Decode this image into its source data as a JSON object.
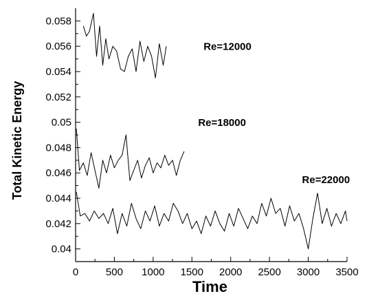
{
  "chart_data": {
    "type": "line",
    "title": "",
    "xlabel": "Time",
    "ylabel": "Total Kinetic Energy",
    "xlim": [
      0,
      3500
    ],
    "ylim": [
      0.039,
      0.059
    ],
    "xticks": [
      0,
      500,
      1000,
      1500,
      2000,
      2500,
      3000,
      3500
    ],
    "xtick_labels": [
      "0",
      "500",
      "1000",
      "1500",
      "2000",
      "2500",
      "3000",
      "3500"
    ],
    "yticks": [
      0.04,
      0.042,
      0.044,
      0.046,
      0.048,
      0.05,
      0.052,
      0.054,
      0.056,
      0.058
    ],
    "ytick_labels": [
      "0.04",
      "0.042",
      "0.044",
      "0.046",
      "0.048",
      "0.05",
      "0.052",
      "0.054",
      "0.056",
      "0.058"
    ],
    "grid": false,
    "line_color": "#000000",
    "series": [
      {
        "name": "Re=12000",
        "x": [
          100,
          140,
          180,
          230,
          270,
          310,
          350,
          390,
          430,
          480,
          530,
          580,
          630,
          680,
          730,
          780,
          830,
          880,
          930,
          980,
          1030,
          1080,
          1130,
          1170
        ],
        "y": [
          0.0576,
          0.0568,
          0.0572,
          0.0586,
          0.0552,
          0.0576,
          0.0545,
          0.0566,
          0.055,
          0.056,
          0.0556,
          0.0542,
          0.054,
          0.0552,
          0.0558,
          0.054,
          0.0564,
          0.0548,
          0.056,
          0.0552,
          0.0535,
          0.0562,
          0.0545,
          0.056
        ]
      },
      {
        "name": "Re=18000",
        "x": [
          10,
          50,
          100,
          150,
          200,
          250,
          300,
          350,
          400,
          450,
          500,
          550,
          600,
          650,
          700,
          750,
          800,
          850,
          900,
          950,
          1000,
          1050,
          1100,
          1150,
          1200,
          1250,
          1300,
          1350,
          1400
        ],
        "y": [
          0.0495,
          0.0462,
          0.0468,
          0.0458,
          0.0476,
          0.0462,
          0.0448,
          0.047,
          0.046,
          0.0474,
          0.0464,
          0.047,
          0.0474,
          0.049,
          0.0454,
          0.0462,
          0.047,
          0.0456,
          0.0466,
          0.0472,
          0.046,
          0.0468,
          0.0464,
          0.0474,
          0.0466,
          0.047,
          0.0458,
          0.047,
          0.0477
        ]
      },
      {
        "name": "Re=22000",
        "x": [
          10,
          60,
          120,
          180,
          240,
          300,
          360,
          420,
          480,
          540,
          600,
          660,
          720,
          780,
          840,
          900,
          960,
          1020,
          1080,
          1140,
          1200,
          1260,
          1320,
          1380,
          1440,
          1500,
          1560,
          1620,
          1680,
          1740,
          1800,
          1860,
          1920,
          1980,
          2040,
          2100,
          2160,
          2220,
          2280,
          2340,
          2400,
          2460,
          2520,
          2580,
          2640,
          2700,
          2760,
          2820,
          2880,
          2940,
          3000,
          3060,
          3120,
          3180,
          3240,
          3300,
          3360,
          3420,
          3480,
          3500
        ],
        "y": [
          0.0445,
          0.0426,
          0.0428,
          0.0422,
          0.043,
          0.0424,
          0.0428,
          0.042,
          0.0432,
          0.0412,
          0.0428,
          0.0418,
          0.0436,
          0.0424,
          0.0416,
          0.043,
          0.0422,
          0.0434,
          0.0418,
          0.0428,
          0.0422,
          0.0436,
          0.043,
          0.042,
          0.0428,
          0.0416,
          0.0422,
          0.0412,
          0.0426,
          0.0418,
          0.043,
          0.042,
          0.0414,
          0.0428,
          0.0418,
          0.0432,
          0.0424,
          0.0416,
          0.0426,
          0.042,
          0.0436,
          0.0426,
          0.044,
          0.0428,
          0.0432,
          0.0418,
          0.0434,
          0.0422,
          0.0428,
          0.0416,
          0.04,
          0.0424,
          0.0444,
          0.042,
          0.0432,
          0.0418,
          0.0428,
          0.042,
          0.043,
          0.0422
        ]
      }
    ],
    "annotations": [
      {
        "text": "Re=12000",
        "x": 1650,
        "y": 0.0557
      },
      {
        "text": "Re=18000",
        "x": 1580,
        "y": 0.0497
      },
      {
        "text": "Re=22000",
        "x": 2920,
        "y": 0.0452
      }
    ]
  }
}
